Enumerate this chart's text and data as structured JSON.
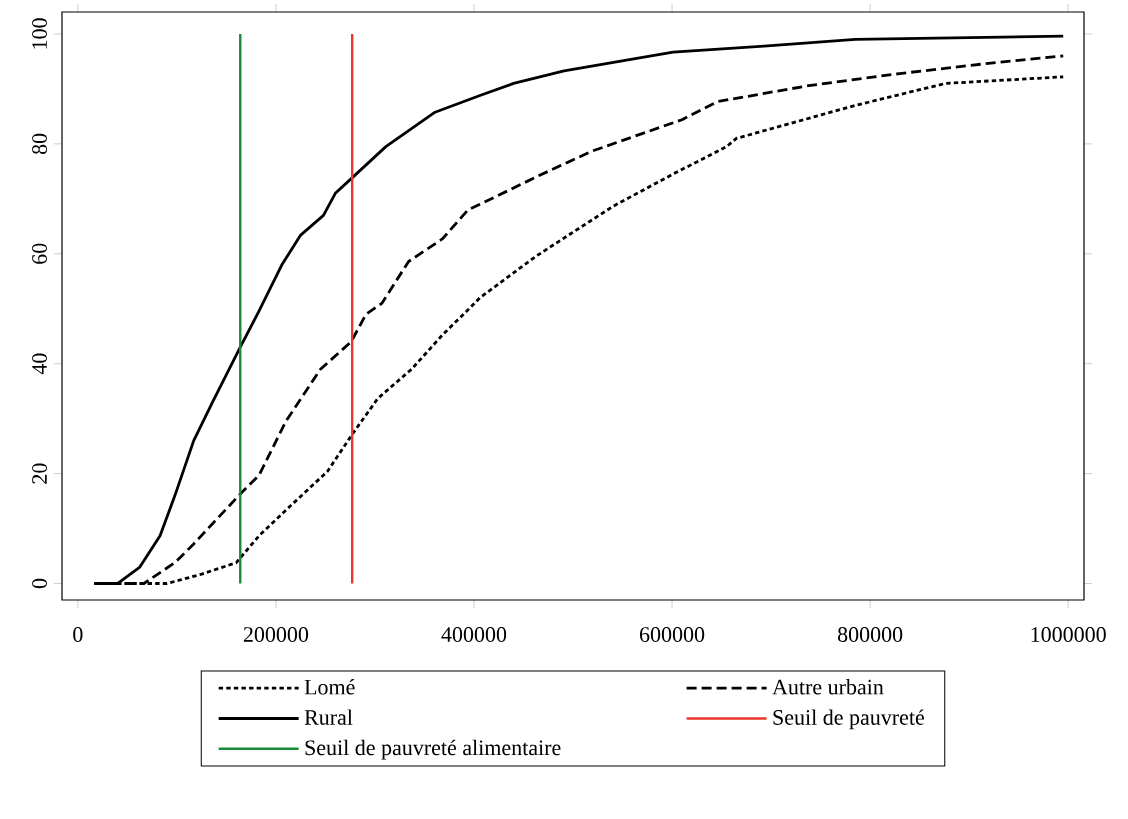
{
  "chart_data": {
    "type": "line",
    "xlim": [
      -16000,
      1016000
    ],
    "ylim": [
      -3,
      104
    ],
    "xticks": [
      0,
      200000,
      400000,
      600000,
      800000,
      1000000
    ],
    "yticks": [
      0,
      20,
      40,
      60,
      80,
      100
    ],
    "legend": "bottom",
    "series": [
      {
        "name": "Lomé",
        "color": "#000000",
        "line_style": "dotted",
        "x": [
          16700,
          60000,
          90000,
          125000,
          160000,
          183000,
          214000,
          252000,
          278000,
          303000,
          337000,
          369000,
          394000,
          406000,
          463000,
          541000,
          601000,
          655000,
          665000,
          785000,
          876000,
          995000
        ],
        "values": [
          0,
          0,
          0,
          1.7,
          3.8,
          8.7,
          14,
          20.4,
          27.4,
          33.7,
          39,
          45.4,
          49.8,
          52,
          59.6,
          68.7,
          74.5,
          79.5,
          81,
          87,
          91,
          92.2
        ]
      },
      {
        "name": "Autre urbain",
        "color": "#000000",
        "line_style": "dashed",
        "x": [
          16700,
          66700,
          98000,
          117000,
          164000,
          183000,
          210000,
          245000,
          276000,
          291000,
          307000,
          334000,
          368000,
          394000,
          406000,
          463000,
          518000,
          610000,
          646000,
          738000,
          830000,
          922000,
          995000
        ],
        "values": [
          0,
          0,
          3.8,
          7.2,
          16.3,
          19.7,
          29.5,
          39,
          44,
          49,
          51,
          58.6,
          62.7,
          68,
          69,
          74,
          78.6,
          84.4,
          87.7,
          90.6,
          92.8,
          94.7,
          96
        ]
      },
      {
        "name": "Rural",
        "color": "#000000",
        "line_style": "solid",
        "x": [
          16700,
          40000,
          62600,
          83000,
          98000,
          117000,
          136000,
          164000,
          183000,
          206000,
          225000,
          248000,
          260000,
          278000,
          311000,
          360000,
          406000,
          440000,
          491000,
          601000,
          693000,
          785000,
          995000
        ],
        "values": [
          0,
          0,
          3,
          8.7,
          16,
          26,
          33,
          43,
          49.6,
          58,
          63.4,
          67,
          71,
          74,
          79.5,
          85.7,
          88.8,
          91,
          93.3,
          96.7,
          97.8,
          99,
          99.6
        ]
      }
    ],
    "ref_lines": [
      {
        "axis": "x",
        "value": 277000,
        "label": "Seuil de pauvreté",
        "color": "#e8382e"
      },
      {
        "axis": "x",
        "value": 164000,
        "label": "Seuil de pauvreté alimentaire",
        "color": "#1a8a3a"
      }
    ]
  }
}
